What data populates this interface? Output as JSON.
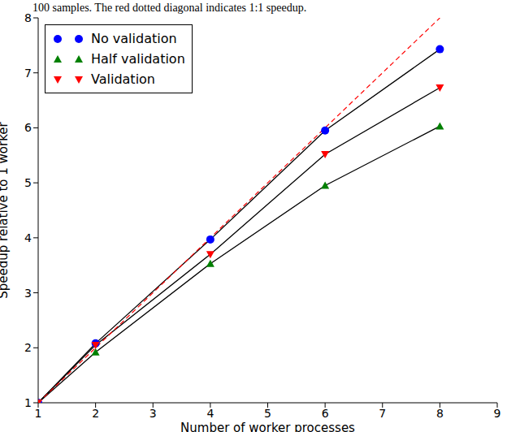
{
  "chart_data": {
    "type": "line",
    "title": "100 samples. The red dotted diagonal indicates 1:1 speedup.",
    "x_label": "Number of worker processes",
    "y_label": "Speedup relative to 1 worker",
    "x": [
      1,
      2,
      4,
      6,
      8
    ],
    "xlim": [
      1,
      9
    ],
    "xticks": [
      1,
      2,
      3,
      4,
      5,
      6,
      7,
      8,
      9
    ],
    "ylim": [
      1,
      8
    ],
    "yticks": [
      1,
      2,
      3,
      4,
      5,
      6,
      7,
      8
    ],
    "grid": false,
    "legend": "upper left",
    "series": [
      {
        "name": "No validation",
        "color": "#0000ff",
        "marker": "circle",
        "values": [
          1,
          2.08,
          3.97,
          5.95,
          7.43
        ]
      },
      {
        "name": "Half validation",
        "color": "#008000",
        "marker": "triangle-up",
        "values": [
          1,
          1.92,
          3.53,
          4.95,
          6.03
        ]
      },
      {
        "name": "Validation",
        "color": "#ff0000",
        "marker": "triangle-down",
        "values": [
          1,
          2.05,
          3.7,
          5.52,
          6.73
        ]
      },
      {
        "color": "#ff0000",
        "line_style": "dashed",
        "x": [
          1,
          8
        ],
        "values": [
          1,
          8
        ]
      }
    ]
  }
}
